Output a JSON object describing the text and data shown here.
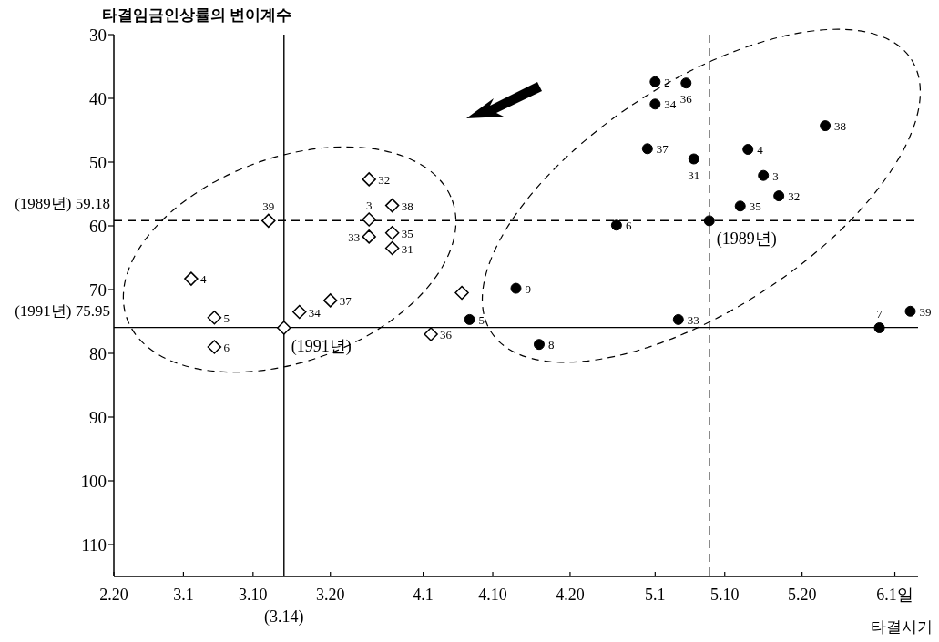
{
  "chart_data": {
    "type": "scatter",
    "ylabel": "타결임금인상률의 변이계수",
    "xlabel": "타결시기",
    "xlim": [
      "--02-20",
      "--06-04"
    ],
    "ylim": [
      115,
      30
    ],
    "xticks": [
      {
        "value": "--02-20",
        "label": "2.20"
      },
      {
        "value": "--03-01",
        "label": "3.1"
      },
      {
        "value": "--03-10",
        "label": "3.10"
      },
      {
        "value": "--03-20",
        "label": "3.20"
      },
      {
        "value": "--04-01",
        "label": "4.1"
      },
      {
        "value": "--04-10",
        "label": "4.10"
      },
      {
        "value": "--04-20",
        "label": "4.20"
      },
      {
        "value": "--05-01",
        "label": "5.1"
      },
      {
        "value": "--05-10",
        "label": "5.10"
      },
      {
        "value": "--05-20",
        "label": "5.20"
      },
      {
        "value": "--06-01",
        "label": "6.1일"
      }
    ],
    "yticks": [
      30,
      40,
      50,
      60,
      70,
      80,
      90,
      100,
      110
    ],
    "series": [
      {
        "marker": "circle",
        "color": "#000000",
        "x": [
          "--05-01",
          "--05-05",
          "--05-01",
          "--05-23",
          "--04-30",
          "--05-13",
          "--05-06",
          "--05-15",
          "--05-17",
          "--05-12",
          "--04-26",
          "--04-13",
          "--04-07",
          "--05-04",
          "--04-16",
          "--05-30",
          "--06-03"
        ],
        "values": [
          37.4,
          37.6,
          40.9,
          44.3,
          47.9,
          48.0,
          49.5,
          52.1,
          55.3,
          56.9,
          59.9,
          69.8,
          74.7,
          74.7,
          78.6,
          76.0,
          73.4
        ]
      },
      {
        "marker": "diamond",
        "color": "#000000",
        "x": [
          "--03-12",
          "--03-25",
          "--03-28",
          "--03-25",
          "--03-25",
          "--03-28",
          "--03-28",
          "--03-02",
          "--03-05",
          "--03-05",
          "--03-16",
          "--03-20",
          "--04-02",
          "--04-06"
        ],
        "values": [
          59.2,
          52.7,
          56.8,
          59.0,
          61.7,
          61.1,
          63.5,
          68.3,
          74.4,
          79.0,
          73.5,
          71.7,
          77.0,
          70.5
        ]
      },
      {
        "marker": "circle",
        "color": "#000000",
        "x": [
          "--05-08"
        ],
        "values": [
          59.2
        ]
      },
      {
        "marker": "diamond",
        "color": "#000000",
        "x": [
          "--03-14"
        ],
        "values": [
          76.0
        ]
      }
    ],
    "annotations": [
      {
        "text": "2",
        "x": "--05-01",
        "y": 37.4
      },
      {
        "text": "36",
        "x": "--05-05",
        "y": 37.6
      },
      {
        "text": "34",
        "x": "--05-01",
        "y": 40.9
      },
      {
        "text": "38",
        "x": "--05-23",
        "y": 44.3
      },
      {
        "text": "37",
        "x": "--04-30",
        "y": 47.9
      },
      {
        "text": "4",
        "x": "--05-13",
        "y": 48.0
      },
      {
        "text": "31",
        "x": "--05-06",
        "y": 49.5
      },
      {
        "text": "3",
        "x": "--05-15",
        "y": 52.1
      },
      {
        "text": "32",
        "x": "--05-17",
        "y": 55.3
      },
      {
        "text": "35",
        "x": "--05-12",
        "y": 56.9
      },
      {
        "text": "6",
        "x": "--04-26",
        "y": 59.9
      },
      {
        "text": "9",
        "x": "--04-13",
        "y": 69.8
      },
      {
        "text": "5",
        "x": "--04-07",
        "y": 74.7
      },
      {
        "text": "33",
        "x": "--05-04",
        "y": 74.7
      },
      {
        "text": "8",
        "x": "--04-16",
        "y": 78.6
      },
      {
        "text": "7",
        "x": "--05-30",
        "y": 76.0
      },
      {
        "text": "39",
        "x": "--06-03",
        "y": 73.4
      },
      {
        "text": "39",
        "x": "--03-12",
        "y": 59.2
      },
      {
        "text": "32",
        "x": "--03-25",
        "y": 52.7
      },
      {
        "text": "38",
        "x": "--03-28",
        "y": 56.8
      },
      {
        "text": "3",
        "x": "--03-25",
        "y": 59.0
      },
      {
        "text": "33",
        "x": "--03-25",
        "y": 61.7
      },
      {
        "text": "35",
        "x": "--03-28",
        "y": 61.1
      },
      {
        "text": "31",
        "x": "--03-28",
        "y": 63.5
      },
      {
        "text": "4",
        "x": "--03-02",
        "y": 68.3
      },
      {
        "text": "5",
        "x": "--03-05",
        "y": 74.4
      },
      {
        "text": "6",
        "x": "--03-05",
        "y": 79.0
      },
      {
        "text": "34",
        "x": "--03-16",
        "y": 73.5
      },
      {
        "text": "37",
        "x": "--03-20",
        "y": 71.7
      },
      {
        "text": "36",
        "x": "--04-02",
        "y": 77.0
      },
      {
        "text": "(1989년)",
        "x": "--05-08",
        "y": 59.2
      },
      {
        "text": "(1991년)",
        "x": "--03-14",
        "y": 76.0
      }
    ],
    "ref_lines": [
      {
        "axis": "y",
        "value": 59.18,
        "label": "(1989년) 59.18",
        "line_style": "dashed"
      },
      {
        "axis": "y",
        "value": 75.95,
        "label": "(1991년) 75.95",
        "line_style": "solid"
      },
      {
        "axis": "x",
        "value": "--03-14",
        "label": "(3.14)",
        "line_style": "solid"
      },
      {
        "axis": "x",
        "value": "--05-08",
        "line_style": "dashed"
      }
    ]
  }
}
